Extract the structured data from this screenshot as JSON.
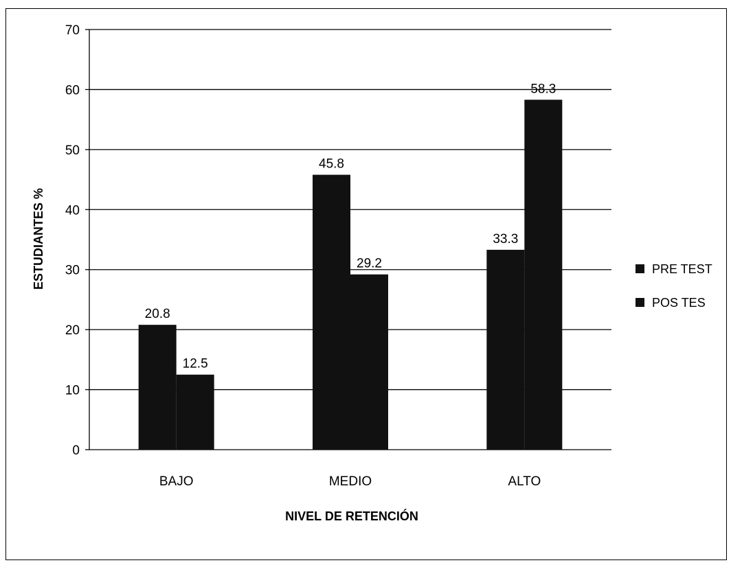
{
  "chart_data": {
    "type": "bar",
    "categories": [
      "BAJO",
      "MEDIO",
      "ALTO"
    ],
    "series": [
      {
        "name": "PRE TEST",
        "values": [
          20.8,
          45.8,
          33.3
        ]
      },
      {
        "name": "POS TES",
        "values": [
          12.5,
          29.2,
          58.3
        ]
      }
    ],
    "data_labels": [
      [
        "20.8",
        "45.8",
        "33.3"
      ],
      [
        "12.5",
        "29.2",
        "58.3"
      ]
    ],
    "xlabel": "NIVEL DE RETENCIÓN",
    "ylabel": "ESTUDIANTES %",
    "ylim": [
      0,
      70
    ],
    "yticks": [
      0,
      10,
      20,
      30,
      40,
      50,
      60,
      70
    ],
    "ytick_labels": [
      "0",
      "10",
      "20",
      "30",
      "40",
      "50",
      "60",
      "70"
    ],
    "grid": true,
    "legend_position": "right",
    "colors": {
      "bar": "#111111",
      "grid": "#000000",
      "background": "#ffffff"
    }
  }
}
